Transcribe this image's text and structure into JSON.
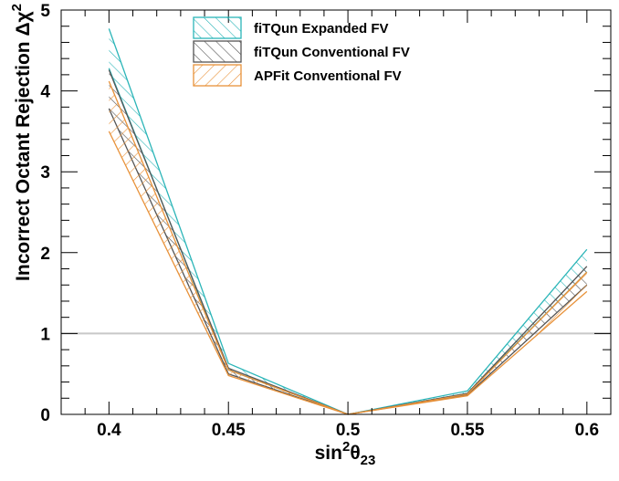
{
  "chart_data": {
    "type": "line",
    "title": "",
    "xlabel": {
      "base": "sin",
      "sup": "2",
      "theta": "θ",
      "sub": "23"
    },
    "ylabel": {
      "text": "Incorrect Octant Rejection Δχ",
      "sup": "2"
    },
    "xlim": [
      0.38,
      0.61
    ],
    "ylim": [
      0,
      5
    ],
    "x_ticks": [
      {
        "value": 0.4,
        "label": "0.4"
      },
      {
        "value": 0.45,
        "label": "0.45"
      },
      {
        "value": 0.5,
        "label": "0.5"
      },
      {
        "value": 0.55,
        "label": "0.55"
      },
      {
        "value": 0.6,
        "label": "0.6"
      }
    ],
    "y_ticks": [
      {
        "value": 0,
        "label": "0"
      },
      {
        "value": 1,
        "label": "1"
      },
      {
        "value": 2,
        "label": "2"
      },
      {
        "value": 3,
        "label": "3"
      },
      {
        "value": 4,
        "label": "4"
      },
      {
        "value": 5,
        "label": "5"
      }
    ],
    "reference_line": {
      "y": 1,
      "color": "#c8c8c8"
    },
    "grid": false,
    "legend_position": "top-center",
    "x": [
      0.4,
      0.45,
      0.5,
      0.55,
      0.6
    ],
    "series": [
      {
        "name": "fiTQun Expanded FV",
        "color": "#2bb5b8",
        "hatch": "forward",
        "upper": [
          4.77,
          0.63,
          0.0,
          0.29,
          2.04
        ],
        "lower": [
          4.28,
          0.55,
          0.0,
          0.26,
          1.76
        ]
      },
      {
        "name": "fiTQun Conventional FV",
        "color": "#555555",
        "hatch": "forward",
        "upper": [
          4.26,
          0.57,
          0.0,
          0.26,
          1.83
        ],
        "lower": [
          3.78,
          0.5,
          0.0,
          0.24,
          1.6
        ]
      },
      {
        "name": "APFit Conventional FV",
        "color": "#e8923a",
        "hatch": "backward",
        "upper": [
          4.12,
          0.55,
          0.0,
          0.25,
          1.76
        ],
        "lower": [
          3.5,
          0.48,
          0.0,
          0.23,
          1.52
        ]
      }
    ]
  }
}
